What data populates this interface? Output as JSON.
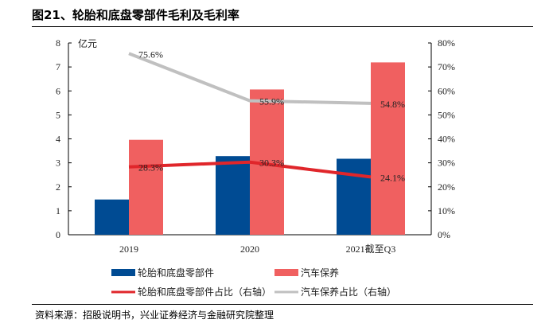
{
  "title": "图21、轮胎和底盘零部件毛利及毛利率",
  "source": "资料来源：招股说明书，兴业证券经济与金融研究院整理",
  "chart_data": {
    "type": "bar+line",
    "title": "图21、轮胎和底盘零部件毛利及毛利率",
    "y_unit_label": "亿元",
    "categories": [
      "2019",
      "2020",
      "2021截至Q3"
    ],
    "ylim": [
      0,
      8
    ],
    "yticks": [
      "0",
      "1",
      "2",
      "3",
      "4",
      "5",
      "6",
      "7",
      "8"
    ],
    "y2lim": [
      0,
      80
    ],
    "y2ticks": [
      "0%",
      "10%",
      "20%",
      "30%",
      "40%",
      "50%",
      "60%",
      "70%",
      "80%"
    ],
    "grid": false,
    "legend_placement": "bottom",
    "bar_series": [
      {
        "name": "轮胎和底盘零部件",
        "color": "#004b93",
        "values": [
          1.47,
          3.28,
          3.17
        ]
      },
      {
        "name": "汽车保养",
        "color": "#f06060",
        "values": [
          3.96,
          6.06,
          7.19
        ]
      }
    ],
    "line_series": [
      {
        "name": "轮胎和底盘零部件占比（右轴）",
        "color": "#e0262b",
        "values": [
          28.3,
          30.3,
          24.1
        ],
        "labels": [
          "28.3%",
          "30.3%",
          "24.1%"
        ]
      },
      {
        "name": "汽车保养占比（右轴）",
        "color": "#c0c0c0",
        "values": [
          75.6,
          55.9,
          54.8
        ],
        "labels": [
          "75.6%",
          "55.9%",
          "54.8%"
        ]
      }
    ]
  }
}
